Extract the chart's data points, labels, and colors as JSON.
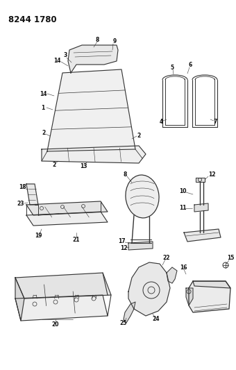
{
  "title": "8244 1780",
  "bg_color": "#ffffff",
  "line_color": "#333333",
  "label_color": "#111111",
  "label_fontsize": 5.5,
  "title_fontsize": 8.5,
  "figsize": [
    3.4,
    5.33
  ],
  "dpi": 100
}
